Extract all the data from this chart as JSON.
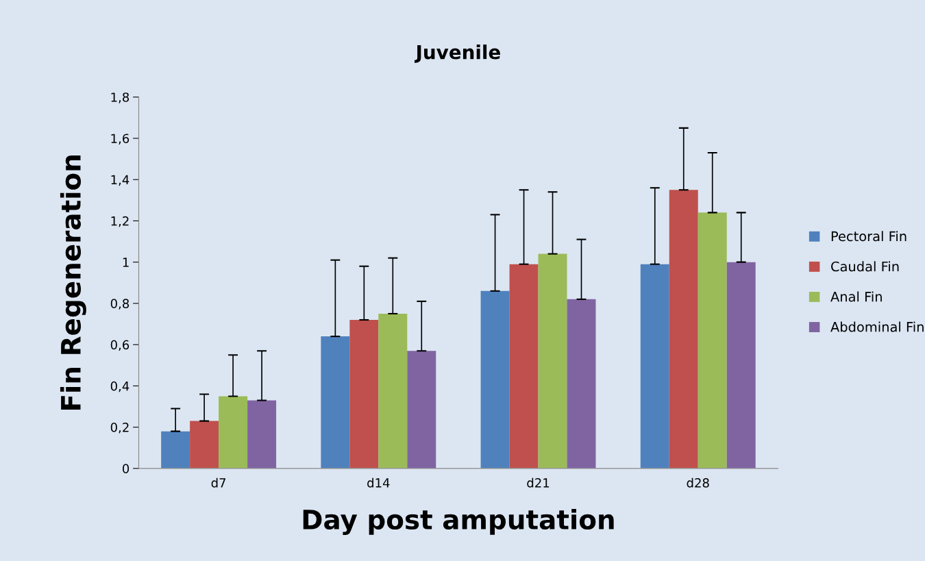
{
  "chart_data": {
    "type": "bar",
    "title": "Juvenile",
    "xlabel": "Day post amputation",
    "ylabel": "Fin Regeneration",
    "categories": [
      "d7",
      "d14",
      "d21",
      "d28"
    ],
    "series": [
      {
        "name": "Pectoral Fin",
        "color": "#4f81bd",
        "values": [
          0.18,
          0.64,
          0.86,
          0.99
        ],
        "errors": [
          [
            0.18,
            0.29
          ],
          [
            0.64,
            1.01
          ],
          [
            0.86,
            1.23
          ],
          [
            0.99,
            1.36
          ]
        ]
      },
      {
        "name": "Caudal Fin",
        "color": "#c0504d",
        "values": [
          0.23,
          0.72,
          0.99,
          1.35
        ],
        "errors": [
          [
            0.23,
            0.36
          ],
          [
            0.72,
            0.98
          ],
          [
            0.99,
            1.35
          ],
          [
            1.35,
            1.65
          ]
        ]
      },
      {
        "name": "Anal Fin",
        "color": "#9bbb59",
        "values": [
          0.35,
          0.75,
          1.04,
          1.24
        ],
        "errors": [
          [
            0.35,
            0.55
          ],
          [
            0.75,
            1.02
          ],
          [
            1.04,
            1.34
          ],
          [
            1.24,
            1.53
          ]
        ]
      },
      {
        "name": "Abdominal Fin",
        "color": "#8064a2",
        "values": [
          0.33,
          0.57,
          0.82,
          1.0
        ],
        "errors": [
          [
            0.33,
            0.57
          ],
          [
            0.57,
            0.81
          ],
          [
            0.82,
            1.11
          ],
          [
            1.0,
            1.24
          ]
        ]
      }
    ],
    "ylim": [
      0,
      1.8
    ],
    "yticks": [
      0,
      {
        "value": 0.2,
        "label": "0,2"
      },
      {
        "value": 0.4,
        "label": "0,4"
      },
      {
        "value": 0.6,
        "label": "0,6"
      },
      {
        "value": 0.8,
        "label": "0,8"
      },
      1,
      {
        "value": 1.2,
        "label": "1,2"
      },
      {
        "value": 1.4,
        "label": "1,4"
      },
      {
        "value": 1.6,
        "label": "1,6"
      },
      {
        "value": 1.8,
        "label": "1,8"
      }
    ],
    "grid": false,
    "legend": "right"
  }
}
